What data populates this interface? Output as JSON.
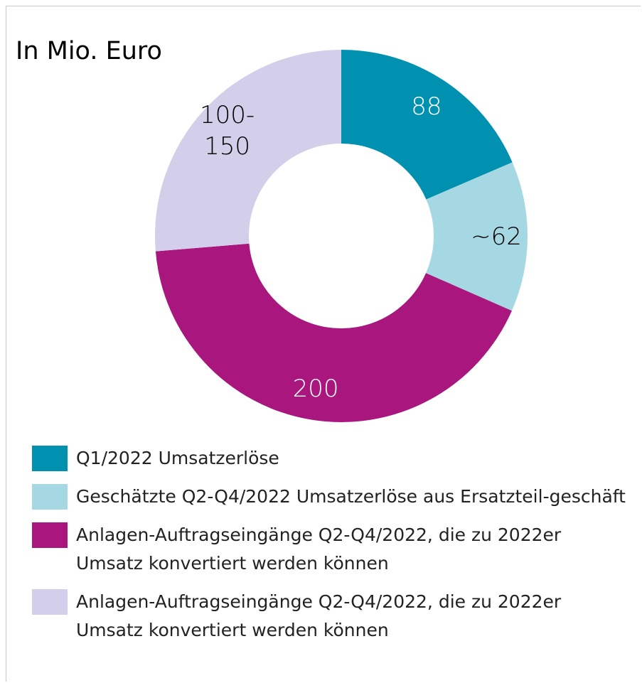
{
  "chart_data": {
    "type": "donut",
    "title": "In Mio. Euro",
    "categories": [
      "Q1/2022 Umsatzerlöse",
      "Geschätzte Q2-Q4/2022 Umsatzerlöse aus Ersatzteil-geschäft",
      "Anlagen-Auftragseingänge Q2-Q4/2022, die zu 2022er Umsatz konvertiert werden können",
      "Anlagen-Auftragseingänge Q2-Q4/2022, die zu 2022er Umsatz konvertiert werden können"
    ],
    "values": [
      88,
      62,
      200,
      125
    ],
    "value_labels": [
      "88",
      "~62",
      "200",
      "100-150"
    ],
    "colors": [
      "#0091b0",
      "#a6d8e3",
      "#a8167e",
      "#d3cee9"
    ],
    "legend": "bottom"
  }
}
